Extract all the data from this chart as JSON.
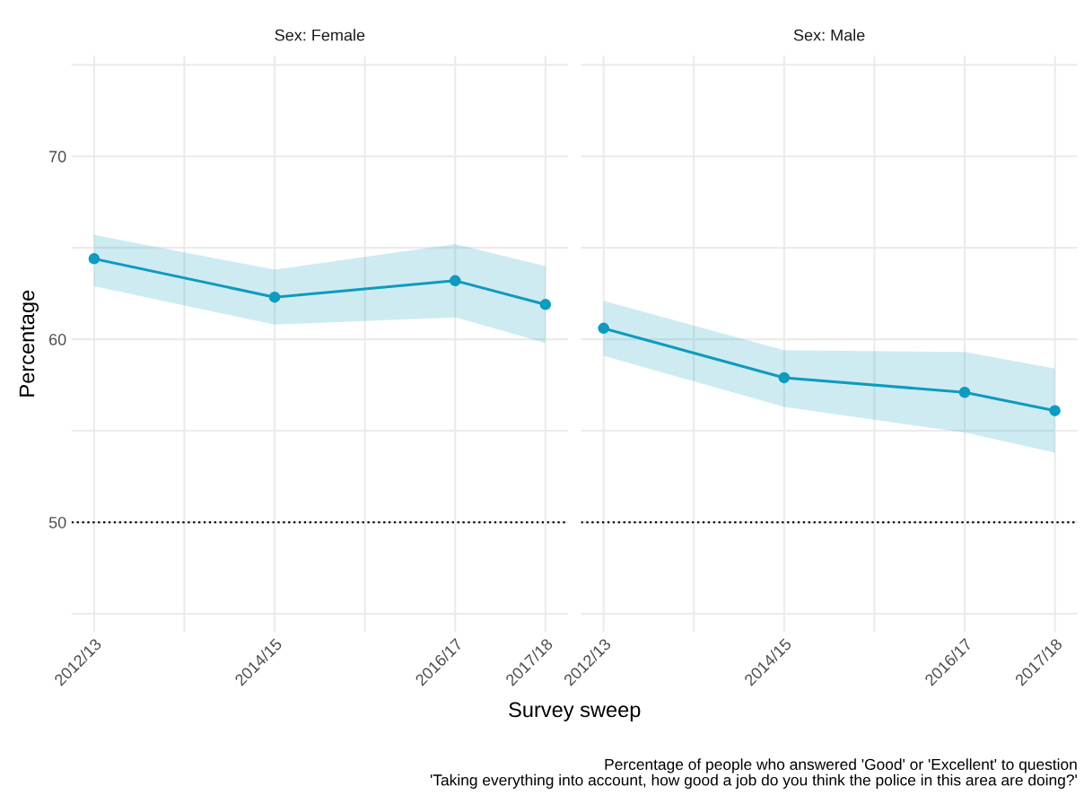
{
  "chart_data": [
    {
      "type": "line",
      "title": "Sex: Female",
      "ylabel": "Percentage",
      "xlabel": "Survey sweep",
      "categories": [
        "2012/13",
        null,
        "2014/15",
        null,
        "2016/17",
        "2017/18"
      ],
      "series": [
        {
          "color": "#0e9bc0",
          "values": [
            64.4,
            null,
            62.3,
            null,
            63.2,
            61.9
          ],
          "lower": [
            62.9,
            null,
            60.8,
            null,
            61.2,
            59.8
          ],
          "upper": [
            65.7,
            null,
            63.8,
            null,
            65.2,
            64.0
          ]
        }
      ],
      "ylim": [
        44,
        75.5
      ],
      "yticks": [
        {
          "value": 45,
          "label": null
        },
        50,
        {
          "value": 55,
          "label": null
        },
        60,
        {
          "value": 65,
          "label": null
        },
        70,
        {
          "value": 75,
          "label": null
        }
      ],
      "ref_lines": [
        {
          "axis": "y",
          "value": 50,
          "color": "#000000",
          "line_style": "dotted"
        }
      ],
      "grid": true,
      "marker": "circle",
      "line_style": "solid"
    },
    {
      "type": "line",
      "title": "Sex: Male",
      "categories": [
        "2012/13",
        null,
        "2014/15",
        null,
        "2016/17",
        "2017/18"
      ],
      "series": [
        {
          "color": "#0e9bc0",
          "values": [
            60.6,
            null,
            57.9,
            null,
            57.1,
            56.1
          ],
          "lower": [
            59.1,
            null,
            56.3,
            null,
            54.9,
            53.8
          ],
          "upper": [
            62.1,
            null,
            59.4,
            null,
            59.3,
            58.4
          ]
        }
      ],
      "ylim": [
        44,
        75.5
      ],
      "yticks": [
        {
          "value": 45,
          "label": null
        },
        50,
        {
          "value": 55,
          "label": null
        },
        60,
        {
          "value": 65,
          "label": null
        },
        70,
        {
          "value": 75,
          "label": null
        }
      ],
      "ref_lines": [
        {
          "axis": "y",
          "value": 50,
          "color": "#000000",
          "line_style": "dotted"
        }
      ],
      "tick_labels": "x",
      "annotations": [
        "Percentage of people who answered 'Good' or 'Excellent' to question\n'Taking everything into account, how good a job do you think the police in this area are doing?'"
      ],
      "grid": true,
      "marker": "circle",
      "line_style": "solid"
    }
  ]
}
